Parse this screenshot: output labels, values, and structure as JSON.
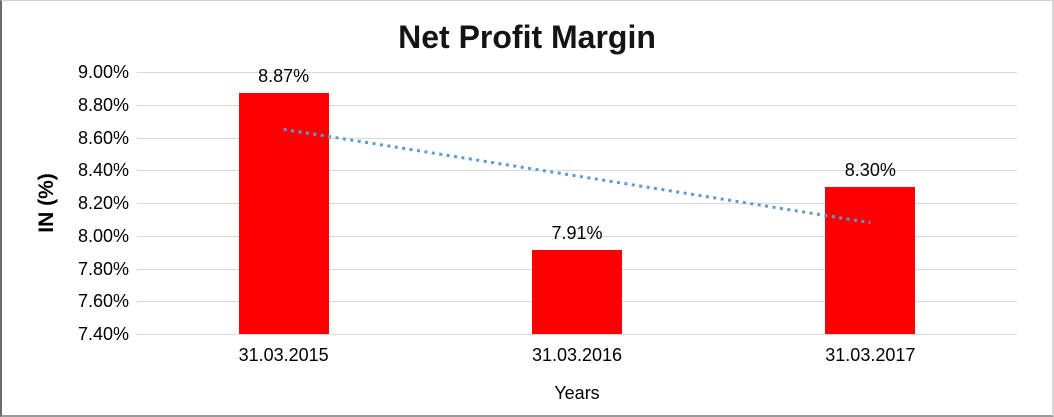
{
  "chart_data": {
    "type": "bar",
    "title": "Net Profit Margin",
    "categories": [
      "31.03.2015",
      "31.03.2016",
      "31.03.2017"
    ],
    "values": [
      8.87,
      7.91,
      8.3
    ],
    "data_labels": [
      "8.87%",
      "7.91%",
      "8.30%"
    ],
    "xlabel": "Years",
    "ylabel": "IN (%)",
    "ylim": [
      7.4,
      9.0
    ],
    "ytick_step": 0.2,
    "ytick_labels": [
      "9.00%",
      "8.80%",
      "8.60%",
      "8.40%",
      "8.20%",
      "8.00%",
      "7.80%",
      "7.60%",
      "7.40%"
    ],
    "grid": true,
    "legend": false,
    "bar_color": "#ff0000",
    "gridline_color": "#d9d9d9",
    "text_color": "#000000",
    "trendline": {
      "type": "linear",
      "style": "dotted",
      "color": "#5b9bd5",
      "start_value": 8.65,
      "end_value": 8.08
    }
  }
}
